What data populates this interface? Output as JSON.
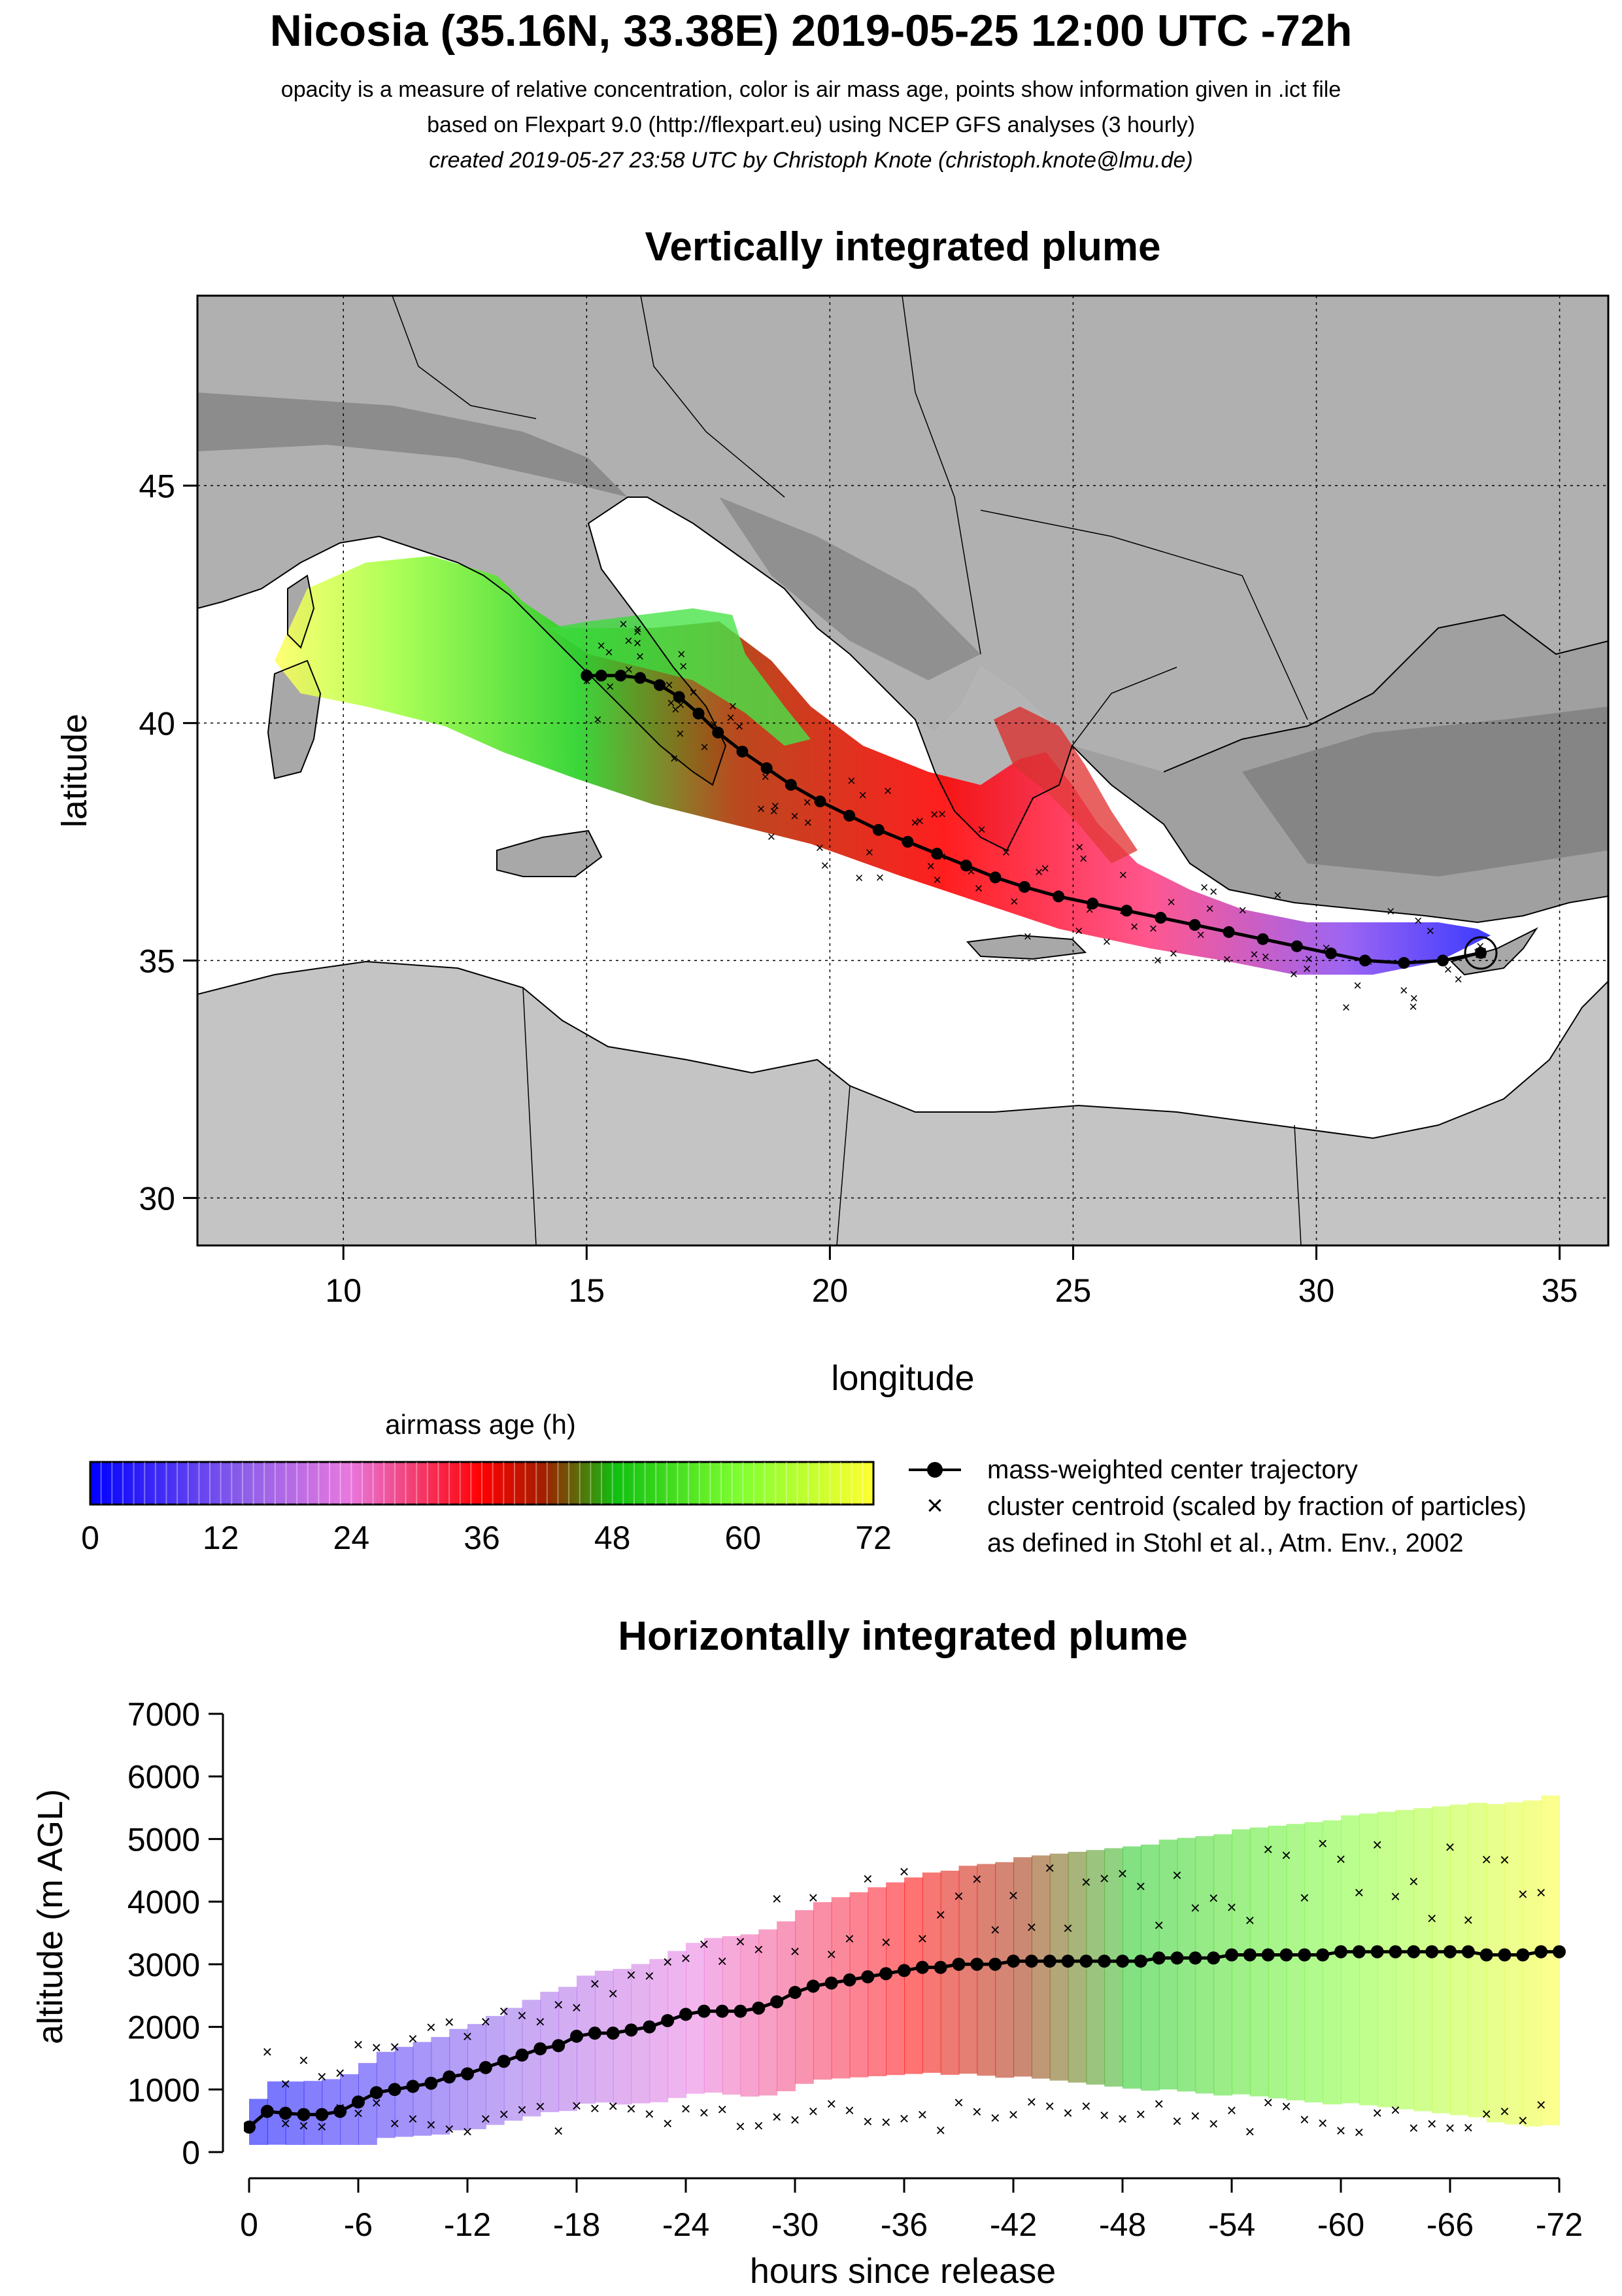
{
  "header": {
    "title": "Nicosia (35.16N, 33.38E) 2019-05-25 12:00 UTC -72h",
    "line1": "opacity is a measure of relative concentration, color is air mass age, points show information given in .ict file",
    "line2": "based on Flexpart 9.0 (http://flexpart.eu) using NCEP GFS analyses (3 hourly)",
    "line3": "created 2019-05-27 23:58 UTC by Christoph Knote (christoph.knote@lmu.de)"
  },
  "colors": {
    "age_0": "#0000ff",
    "age_18": "#e070e0",
    "age_36": "#ff0000",
    "age_48": "#30c030",
    "age_60": "#90ff30",
    "age_72": "#ffff30",
    "land": "#a8a8a8",
    "sea": "#ffffff"
  },
  "map": {
    "title": "Vertically integrated plume",
    "xlabel": "longitude",
    "ylabel": "latitude",
    "xticks": [
      "10",
      "15",
      "20",
      "25",
      "30",
      "35"
    ],
    "yticks": [
      "30",
      "35",
      "40",
      "45"
    ]
  },
  "colorbar": {
    "title": "airmass age (h)",
    "ticks": [
      "0",
      "12",
      "24",
      "36",
      "48",
      "60",
      "72"
    ]
  },
  "legend": {
    "line_label": "mass-weighted center trajectory",
    "cross_label": "cluster centroid (scaled by fraction of particles)",
    "note": "as defined in Stohl et al., Atm. Env., 2002"
  },
  "profile": {
    "title": "Horizontally integrated plume",
    "xlabel": "hours since release",
    "ylabel": "altitude (m AGL)",
    "xticks": [
      "0",
      "-6",
      "-12",
      "-18",
      "-24",
      "-30",
      "-36",
      "-42",
      "-48",
      "-54",
      "-60",
      "-66",
      "-72"
    ],
    "yticks": [
      "0",
      "1000",
      "2000",
      "3000",
      "4000",
      "5000",
      "6000",
      "7000"
    ]
  },
  "chart_data": [
    {
      "type": "scatter",
      "title": "Vertically integrated plume",
      "xlabel": "longitude",
      "ylabel": "latitude",
      "xlim": [
        7,
        36
      ],
      "ylim": [
        29,
        49
      ],
      "grid": true,
      "release_point": {
        "lon": 33.38,
        "lat": 35.16
      },
      "series": [
        {
          "name": "mass-weighted center trajectory",
          "lon": [
            33.38,
            32.6,
            31.8,
            31.0,
            30.3,
            29.6,
            28.9,
            28.2,
            27.5,
            26.8,
            26.1,
            25.4,
            24.7,
            24.0,
            23.4,
            22.8,
            22.2,
            21.6,
            21.0,
            20.4,
            19.8,
            19.2,
            18.7,
            18.2,
            17.7,
            17.3,
            16.9,
            16.5,
            16.1,
            15.7,
            15.3,
            15.0
          ],
          "lat": [
            35.16,
            35.0,
            34.95,
            35.0,
            35.15,
            35.3,
            35.45,
            35.6,
            35.75,
            35.9,
            36.05,
            36.2,
            36.35,
            36.55,
            36.75,
            37.0,
            37.25,
            37.5,
            37.75,
            38.05,
            38.35,
            38.7,
            39.05,
            39.4,
            39.8,
            40.2,
            40.55,
            40.8,
            40.95,
            41.0,
            41.0,
            41.0
          ]
        }
      ],
      "plume_colorscale": {
        "variable": "airmass age (h)",
        "range": [
          0,
          72
        ]
      }
    },
    {
      "type": "line",
      "title": "Horizontally integrated plume",
      "xlabel": "hours since release",
      "ylabel": "altitude (m AGL)",
      "xlim": [
        0,
        -72
      ],
      "ylim": [
        0,
        7000
      ],
      "series": [
        {
          "name": "mass-weighted center trajectory",
          "x": [
            0,
            -1,
            -2,
            -3,
            -4,
            -5,
            -6,
            -7,
            -8,
            -9,
            -10,
            -11,
            -12,
            -13,
            -14,
            -15,
            -16,
            -17,
            -18,
            -19,
            -20,
            -21,
            -22,
            -23,
            -24,
            -25,
            -26,
            -27,
            -28,
            -29,
            -30,
            -31,
            -32,
            -33,
            -34,
            -35,
            -36,
            -37,
            -38,
            -39,
            -40,
            -41,
            -42,
            -43,
            -44,
            -45,
            -46,
            -47,
            -48,
            -49,
            -50,
            -51,
            -52,
            -53,
            -54,
            -55,
            -56,
            -57,
            -58,
            -59,
            -60,
            -61,
            -62,
            -63,
            -64,
            -65,
            -66,
            -67,
            -68,
            -69,
            -70,
            -71,
            -72
          ],
          "y": [
            400,
            650,
            620,
            600,
            600,
            650,
            800,
            950,
            1000,
            1050,
            1100,
            1200,
            1250,
            1350,
            1450,
            1550,
            1650,
            1700,
            1850,
            1900,
            1900,
            1950,
            2000,
            2100,
            2200,
            2250,
            2250,
            2250,
            2300,
            2400,
            2550,
            2650,
            2700,
            2750,
            2800,
            2850,
            2900,
            2950,
            2950,
            3000,
            3000,
            3000,
            3050,
            3050,
            3050,
            3050,
            3050,
            3050,
            3050,
            3050,
            3100,
            3100,
            3100,
            3100,
            3150,
            3150,
            3150,
            3150,
            3150,
            3150,
            3200,
            3200,
            3200,
            3200,
            3200,
            3200,
            3200,
            3200,
            3150,
            3150,
            3150,
            3200,
            3200
          ]
        }
      ]
    }
  ]
}
